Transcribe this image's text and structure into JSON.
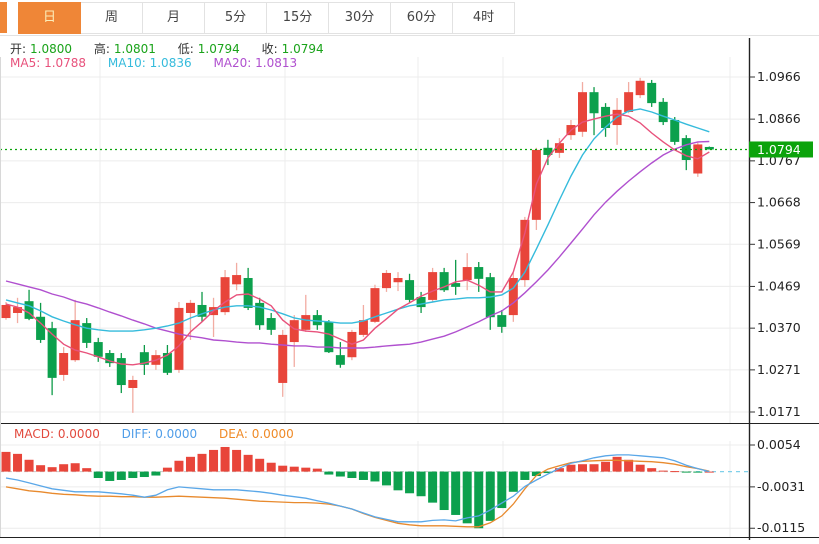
{
  "tabs": [
    {
      "label": "日",
      "active": true
    },
    {
      "label": "周",
      "active": false
    },
    {
      "label": "月",
      "active": false
    },
    {
      "label": "5分",
      "active": false
    },
    {
      "label": "15分",
      "active": false
    },
    {
      "label": "30分",
      "active": false
    },
    {
      "label": "60分",
      "active": false
    },
    {
      "label": "4时",
      "active": false
    }
  ],
  "ohlc_legend": {
    "open_label": "开:",
    "open_value": "1.0800",
    "high_label": "高:",
    "high_value": "1.0801",
    "low_label": "低:",
    "low_value": "1.0794",
    "close_label": "收:",
    "close_value": "1.0794"
  },
  "ma_legend": {
    "ma5_label": "MA5:",
    "ma5_value": "1.0788",
    "ma10_label": "MA10:",
    "ma10_value": "1.0836",
    "ma20_label": "MA20:",
    "ma20_value": "1.0813"
  },
  "macd_legend": {
    "macd_label": "MACD:",
    "macd_value": "0.0000",
    "diff_label": "DIFF:",
    "diff_value": "0.0000",
    "dea_label": "DEA:",
    "dea_value": "0.0000"
  },
  "colors": {
    "up_body": "#e8453a",
    "up_wick": "#f2aca2",
    "down_body": "#0ca04d",
    "down_wick": "#0d9a48",
    "ma5": "#e8527c",
    "ma10": "#35bbdc",
    "ma20": "#b050cf",
    "price_line": "#0ca30c",
    "price_badge_bg": "#0ca30c",
    "price_badge_text": "#ffffff",
    "diff_line": "#5aa7e8",
    "dea_line": "#e88a2e",
    "grid": "#ececec",
    "axis_text": "#222222",
    "axis_line": "#222222",
    "active_tab": "#ef8637"
  },
  "chart_data": {
    "type": "candlestick-with-macd",
    "legend_position": "top-left",
    "grid": true,
    "price_axis_labels": [
      1.0966,
      1.0866,
      1.0767,
      1.0668,
      1.0569,
      1.0469,
      1.037,
      1.0271,
      1.0171
    ],
    "price_range": [
      1.0171,
      1.0966
    ],
    "current_price": 1.0794,
    "last_candle": {
      "open": 1.08,
      "high": 1.0801,
      "low": 1.0794,
      "close": 1.0794
    },
    "candles_ohlc": [
      [
        1.0394,
        1.0432,
        1.039,
        1.0425
      ],
      [
        1.0406,
        1.0442,
        1.0382,
        1.042
      ],
      [
        1.0434,
        1.0461,
        1.0389,
        1.0392
      ],
      [
        1.0397,
        1.043,
        1.0335,
        1.0342
      ],
      [
        1.037,
        1.0385,
        1.0211,
        1.0252
      ],
      [
        1.0259,
        1.0325,
        1.0245,
        1.0311
      ],
      [
        1.0294,
        1.0437,
        1.029,
        1.0389
      ],
      [
        1.0382,
        1.0394,
        1.0323,
        1.0335
      ],
      [
        1.0337,
        1.0347,
        1.029,
        1.0302
      ],
      [
        1.0311,
        1.0318,
        1.0278,
        1.0287
      ],
      [
        1.0299,
        1.0311,
        1.0216,
        1.0235
      ],
      [
        1.0228,
        1.0257,
        1.0169,
        1.0247
      ],
      [
        1.0313,
        1.033,
        1.0259,
        1.0283
      ],
      [
        1.0283,
        1.0318,
        1.0271,
        1.0306
      ],
      [
        1.0311,
        1.033,
        1.0259,
        1.0264
      ],
      [
        1.0271,
        1.0432,
        1.0264,
        1.0418
      ],
      [
        1.0406,
        1.0437,
        1.0342,
        1.043
      ],
      [
        1.0425,
        1.0456,
        1.0385,
        1.0397
      ],
      [
        1.0401,
        1.0442,
        1.0349,
        1.042
      ],
      [
        1.0408,
        1.0508,
        1.0401,
        1.0491
      ],
      [
        1.0474,
        1.0525,
        1.046,
        1.0496
      ],
      [
        1.0489,
        1.0513,
        1.0413,
        1.0418
      ],
      [
        1.043,
        1.0442,
        1.0366,
        1.0377
      ],
      [
        1.0394,
        1.0406,
        1.0354,
        1.0366
      ],
      [
        1.024,
        1.0366,
        1.0207,
        1.0354
      ],
      [
        1.0337,
        1.0401,
        1.0278,
        1.0389
      ],
      [
        1.0366,
        1.0449,
        1.0361,
        1.0401
      ],
      [
        1.0401,
        1.0413,
        1.0366,
        1.0377
      ],
      [
        1.0385,
        1.0389,
        1.0311,
        1.0313
      ],
      [
        1.0306,
        1.0337,
        1.0276,
        1.0283
      ],
      [
        1.0301,
        1.0366,
        1.0294,
        1.0361
      ],
      [
        1.0354,
        1.0425,
        1.0349,
        1.0389
      ],
      [
        1.0385,
        1.0473,
        1.0382,
        1.0465
      ],
      [
        1.0465,
        1.0508,
        1.0456,
        1.0501
      ],
      [
        1.0479,
        1.0503,
        1.0458,
        1.0489
      ],
      [
        1.0484,
        1.0499,
        1.043,
        1.0437
      ],
      [
        1.0444,
        1.0456,
        1.0406,
        1.042
      ],
      [
        1.0437,
        1.0513,
        1.0432,
        1.0503
      ],
      [
        1.0503,
        1.0513,
        1.0456,
        1.046
      ],
      [
        1.0477,
        1.0532,
        1.0449,
        1.0468
      ],
      [
        1.0484,
        1.0548,
        1.046,
        1.0515
      ],
      [
        1.0515,
        1.0527,
        1.0456,
        1.0487
      ],
      [
        1.0491,
        1.0501,
        1.0366,
        1.0396
      ],
      [
        1.0401,
        1.0413,
        1.0359,
        1.0373
      ],
      [
        1.0401,
        1.0501,
        1.0385,
        1.0489
      ],
      [
        1.0484,
        1.0634,
        1.0468,
        1.0627
      ],
      [
        1.0627,
        1.0798,
        1.0603,
        1.0793
      ],
      [
        1.0798,
        1.0817,
        1.0757,
        1.0781
      ],
      [
        1.0786,
        1.0821,
        1.0774,
        1.0809
      ],
      [
        1.0828,
        1.0864,
        1.0817,
        1.0852
      ],
      [
        1.0836,
        1.0954,
        1.0824,
        1.093
      ],
      [
        1.093,
        1.0942,
        1.0828,
        1.088
      ],
      [
        1.0895,
        1.0904,
        1.0824,
        1.0845
      ],
      [
        1.0852,
        1.0916,
        1.0805,
        1.0888
      ],
      [
        1.0883,
        1.0954,
        1.088,
        1.093
      ],
      [
        1.0923,
        1.0964,
        1.0916,
        1.0957
      ],
      [
        1.0952,
        1.0959,
        1.0895,
        1.0904
      ],
      [
        1.0907,
        1.0916,
        1.0852,
        1.0859
      ],
      [
        1.0864,
        1.0871,
        1.0805,
        1.0812
      ],
      [
        1.0821,
        1.0828,
        1.0745,
        1.0769
      ],
      [
        1.0737,
        1.0812,
        1.0729,
        1.0806
      ],
      [
        1.08,
        1.0801,
        1.0794,
        1.0794
      ]
    ],
    "ma5": [
      1.0427,
      1.042,
      1.0406,
      1.0382,
      1.0356,
      1.0332,
      1.0318,
      1.0311,
      1.0302,
      1.0292,
      1.0285,
      1.0283,
      1.0287,
      1.0294,
      1.0306,
      1.0328,
      1.0361,
      1.0385,
      1.0411,
      1.0432,
      1.0449,
      1.0451,
      1.0439,
      1.0423,
      1.0389,
      1.0368,
      1.0363,
      1.0361,
      1.0356,
      1.0344,
      1.0332,
      1.0342,
      1.037,
      1.0392,
      1.0415,
      1.043,
      1.0446,
      1.0458,
      1.0468,
      1.048,
      1.0484,
      1.0472,
      1.0456,
      1.0456,
      1.0503,
      1.0596,
      1.0712,
      1.0774,
      1.0809,
      1.084,
      1.0859,
      1.0866,
      1.0873,
      1.0878,
      1.0873,
      1.0857,
      1.0833,
      1.0812,
      1.0793,
      1.0779,
      1.0772,
      1.0788
    ],
    "ma10": [
      1.0437,
      1.043,
      1.0423,
      1.0411,
      1.0397,
      1.0387,
      1.0378,
      1.037,
      1.0366,
      1.0363,
      1.0363,
      1.0363,
      1.0366,
      1.037,
      1.0375,
      1.0382,
      1.0394,
      1.0404,
      1.0413,
      1.042,
      1.0423,
      1.0423,
      1.042,
      1.0413,
      1.0404,
      1.0394,
      1.0389,
      1.0387,
      1.0385,
      1.0382,
      1.0382,
      1.0387,
      1.0397,
      1.0406,
      1.0415,
      1.0423,
      1.0427,
      1.0432,
      1.0437,
      1.0439,
      1.0442,
      1.0442,
      1.0444,
      1.0449,
      1.0465,
      1.0503,
      1.0558,
      1.0615,
      1.0674,
      1.0731,
      1.0781,
      1.0819,
      1.0847,
      1.0871,
      1.0885,
      1.089,
      1.0883,
      1.0873,
      1.0864,
      1.0854,
      1.0845,
      1.0836
    ],
    "ma20": [
      1.0482,
      1.0475,
      1.0468,
      1.0461,
      1.0451,
      1.0444,
      1.0434,
      1.0427,
      1.0418,
      1.0408,
      1.0399,
      1.0389,
      1.038,
      1.037,
      1.0363,
      1.0356,
      1.0351,
      1.0347,
      1.0342,
      1.034,
      1.0337,
      1.0335,
      1.0335,
      1.0332,
      1.033,
      1.0328,
      1.0328,
      1.0325,
      1.0325,
      1.0323,
      1.0323,
      1.0323,
      1.0325,
      1.0328,
      1.033,
      1.0332,
      1.0337,
      1.0344,
      1.0351,
      1.0361,
      1.0373,
      1.0385,
      1.0399,
      1.0411,
      1.043,
      1.0454,
      1.048,
      1.0508,
      1.0539,
      1.0572,
      1.0605,
      1.0639,
      1.0669,
      1.0695,
      1.0719,
      1.0741,
      1.0762,
      1.0781,
      1.0795,
      1.0805,
      1.0812,
      1.0813
    ],
    "macd": {
      "axis_labels": [
        0.0054,
        -0.0031,
        -0.0115
      ],
      "range": [
        -0.0115,
        0.0054
      ],
      "histogram": [
        0.004,
        0.0036,
        0.0024,
        0.0013,
        0.0009,
        0.0015,
        0.0017,
        0.0007,
        -0.0013,
        -0.0019,
        -0.0017,
        -0.0013,
        -0.0011,
        -0.0008,
        0.0008,
        0.0022,
        0.003,
        0.0036,
        0.0044,
        0.005,
        0.0044,
        0.0034,
        0.0026,
        0.0018,
        0.0012,
        0.001,
        0.0008,
        0.0006,
        -0.0006,
        -0.001,
        -0.0013,
        -0.0017,
        -0.002,
        -0.0028,
        -0.0038,
        -0.0044,
        -0.005,
        -0.0063,
        -0.0078,
        -0.0088,
        -0.0105,
        -0.0115,
        -0.01,
        -0.0074,
        -0.0041,
        -0.0017,
        -0.0009,
        -0.0003,
        0.0007,
        0.0014,
        0.0015,
        0.0015,
        0.002,
        0.003,
        0.0024,
        0.0014,
        0.0007,
        0.0002,
        0.0001,
        -0.0002,
        -0.0001,
        0.0
      ],
      "diff": [
        -0.0013,
        -0.0017,
        -0.0023,
        -0.0029,
        -0.0035,
        -0.0038,
        -0.0041,
        -0.0041,
        -0.0041,
        -0.0043,
        -0.0045,
        -0.0048,
        -0.0052,
        -0.0048,
        -0.0037,
        -0.0031,
        -0.0033,
        -0.0035,
        -0.0037,
        -0.0037,
        -0.0037,
        -0.0039,
        -0.0041,
        -0.0044,
        -0.0048,
        -0.0051,
        -0.0054,
        -0.0059,
        -0.0064,
        -0.007,
        -0.0076,
        -0.0084,
        -0.0092,
        -0.0097,
        -0.0102,
        -0.0102,
        -0.0102,
        -0.0099,
        -0.0098,
        -0.01,
        -0.0094,
        -0.009,
        -0.0078,
        -0.0064,
        -0.005,
        -0.003,
        -0.0017,
        -0.0005,
        0.0007,
        0.0017,
        0.0022,
        0.0028,
        0.0032,
        0.0034,
        0.0034,
        0.0032,
        0.003,
        0.0028,
        0.0022,
        0.0013,
        0.0006,
        0.0
      ],
      "dea": [
        -0.0031,
        -0.0035,
        -0.0039,
        -0.0041,
        -0.0044,
        -0.0046,
        -0.0047,
        -0.0049,
        -0.005,
        -0.005,
        -0.0051,
        -0.0051,
        -0.0052,
        -0.0052,
        -0.0051,
        -0.005,
        -0.0051,
        -0.0052,
        -0.0053,
        -0.0054,
        -0.0056,
        -0.0058,
        -0.006,
        -0.0061,
        -0.0062,
        -0.0063,
        -0.0063,
        -0.0064,
        -0.0066,
        -0.007,
        -0.0076,
        -0.0085,
        -0.0093,
        -0.0099,
        -0.0105,
        -0.0108,
        -0.011,
        -0.011,
        -0.011,
        -0.0111,
        -0.0112,
        -0.0112,
        -0.0104,
        -0.009,
        -0.0066,
        -0.0035,
        -0.0008,
        0.0005,
        0.0012,
        0.0018,
        0.0021,
        0.0022,
        0.0023,
        0.0023,
        0.0022,
        0.0021,
        0.002,
        0.0018,
        0.0015,
        0.001,
        0.0006,
        0.0001
      ]
    }
  }
}
